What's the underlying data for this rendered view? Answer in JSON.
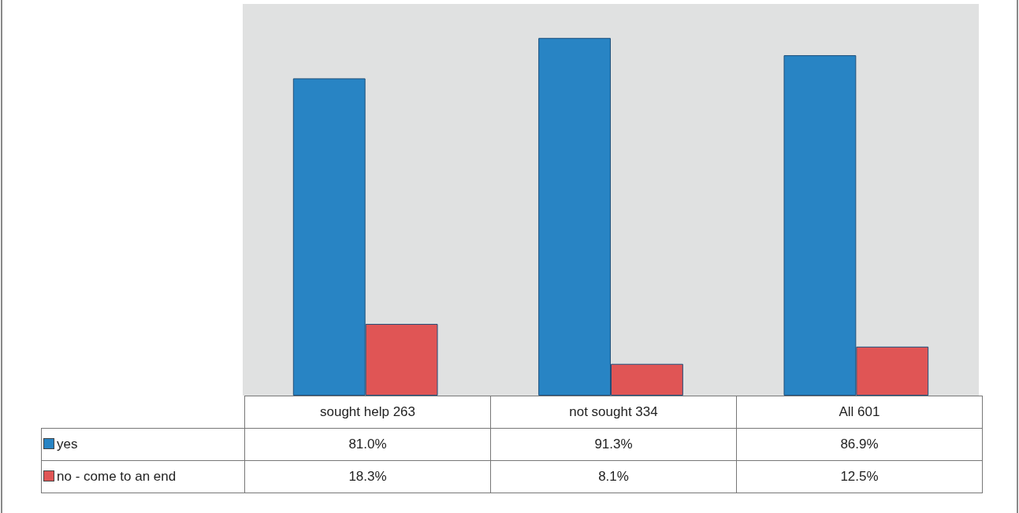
{
  "chart_data": {
    "type": "bar",
    "categories": [
      "sought help 263",
      "not sought 334",
      "All 601"
    ],
    "series": [
      {
        "name": "yes",
        "color": "#2884c4",
        "values": [
          81.0,
          91.3,
          86.9
        ],
        "value_labels": [
          "81.0%",
          "91.3%",
          "86.9%"
        ]
      },
      {
        "name": "no - come to an end",
        "color": "#e05555",
        "values": [
          18.3,
          8.1,
          12.5
        ],
        "value_labels": [
          "18.3%",
          "8.1%",
          "12.5%"
        ]
      }
    ],
    "legend": "bottom"
  }
}
